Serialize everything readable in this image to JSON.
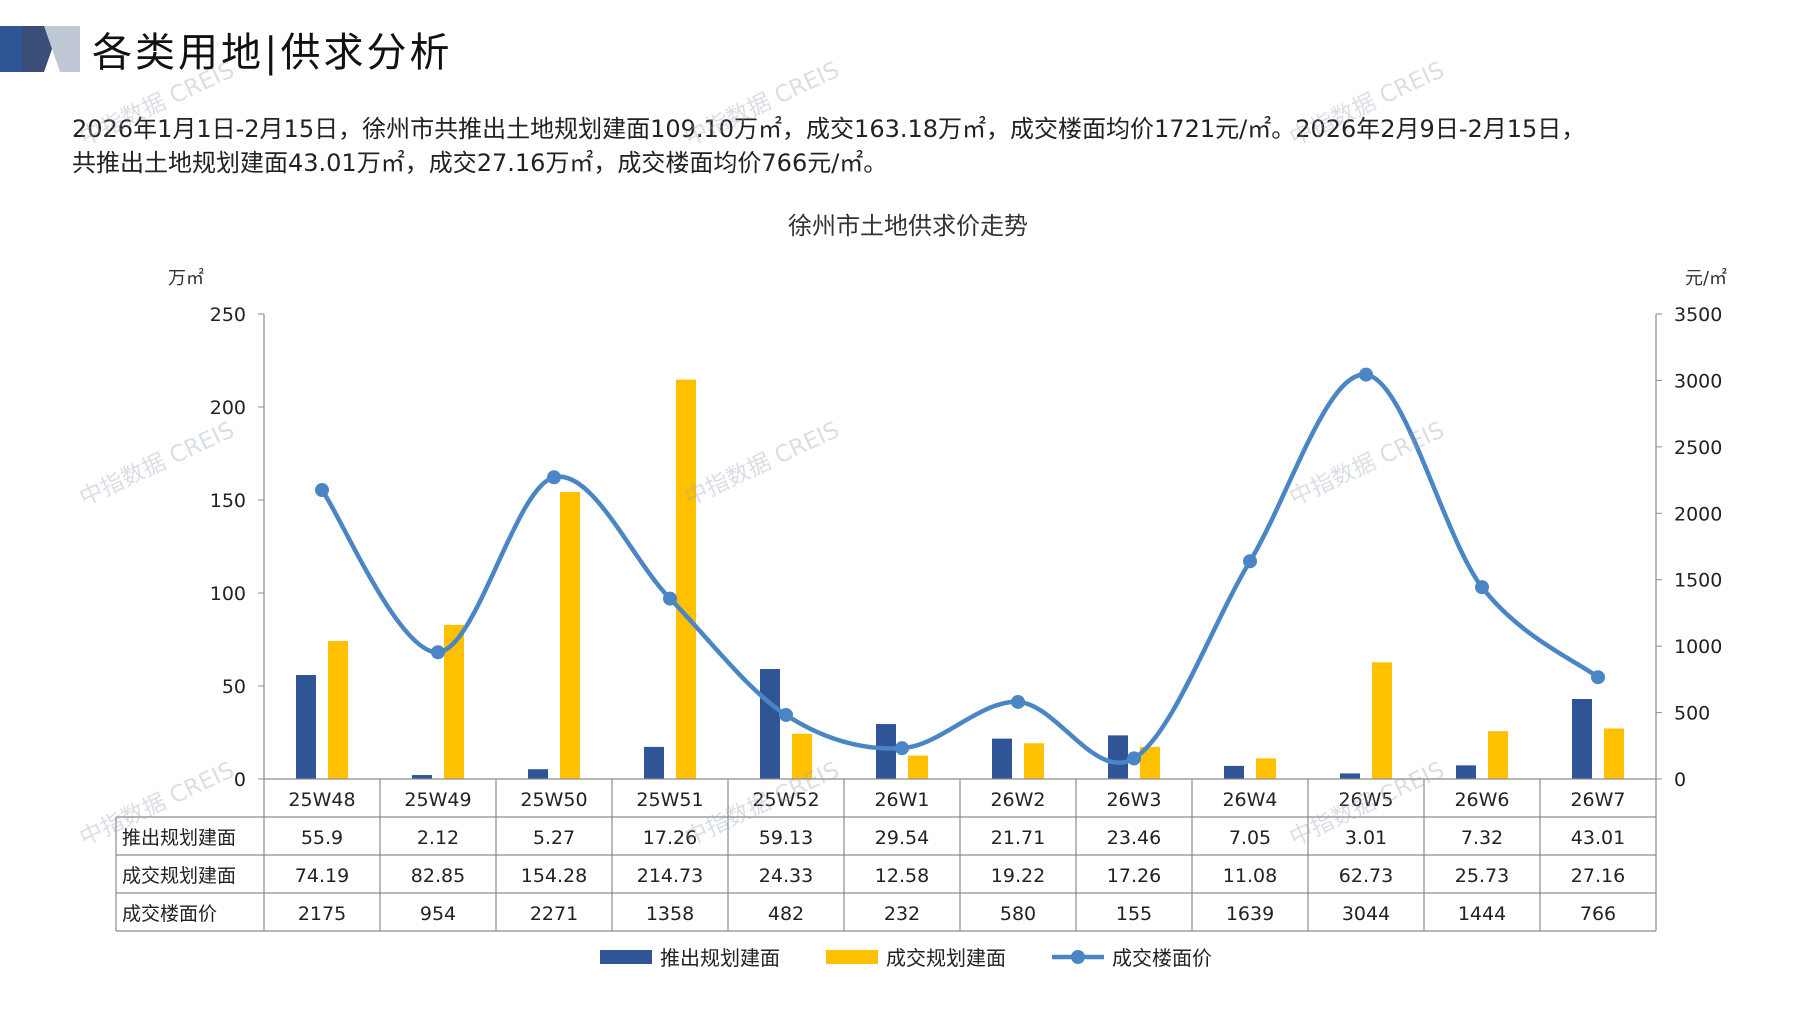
{
  "header": {
    "title": "各类用地|供求分析"
  },
  "summary": {
    "line1": "2026年1月1日-2月15日，徐州市共推出土地规划建面109.10万㎡，成交163.18万㎡，成交楼面均价1721元/㎡。2026年2月9日-2月15日，",
    "line2": "共推出土地规划建面43.01万㎡，成交27.16万㎡，成交楼面均价766元/㎡。"
  },
  "watermark": "中指数据 CREIS",
  "colors": {
    "supply": "#2F5597",
    "deal": "#FFC000",
    "price": "#4A86C5",
    "deco_dark": "#2F5597",
    "deco_light": "#BFC7D5"
  },
  "chart_data": {
    "type": "bar",
    "title": "徐州市土地供求价走势",
    "ylabel_left": "万㎡",
    "ylabel_right": "元/㎡",
    "ylim_left": [
      0,
      250
    ],
    "ylim_right": [
      0,
      3500
    ],
    "yticks_left": [
      "0",
      "50",
      "100",
      "150",
      "200",
      "250"
    ],
    "yticks_right": [
      "0",
      "500",
      "1000",
      "1500",
      "2000",
      "2500",
      "3000",
      "3500"
    ],
    "categories": [
      "25W48",
      "25W49",
      "25W50",
      "25W51",
      "25W52",
      "26W1",
      "26W2",
      "26W3",
      "26W4",
      "26W5",
      "26W6",
      "26W7"
    ],
    "series": [
      {
        "name": "推出规划建面",
        "type": "bar",
        "axis": "left",
        "values": [
          55.9,
          2.12,
          5.27,
          17.26,
          59.13,
          29.54,
          21.71,
          23.46,
          7.05,
          3.01,
          7.32,
          43.01
        ],
        "labels": [
          "55.9",
          "2.12",
          "5.27",
          "17.26",
          "59.13",
          "29.54",
          "21.71",
          "23.46",
          "7.05",
          "3.01",
          "7.32",
          "43.01"
        ]
      },
      {
        "name": "成交规划建面",
        "type": "bar",
        "axis": "left",
        "values": [
          74.19,
          82.85,
          154.28,
          214.73,
          24.33,
          12.58,
          19.22,
          17.26,
          11.08,
          62.73,
          25.73,
          27.16
        ],
        "labels": [
          "74.19",
          "82.85",
          "154.28",
          "214.73",
          "24.33",
          "12.58",
          "19.22",
          "17.26",
          "11.08",
          "62.73",
          "25.73",
          "27.16"
        ]
      },
      {
        "name": "成交楼面价",
        "type": "line",
        "axis": "right",
        "values": [
          2175,
          954,
          2271,
          1358,
          482,
          232,
          580,
          155,
          1639,
          3044,
          1444,
          766
        ],
        "labels": [
          "2175",
          "954",
          "2271",
          "1358",
          "482",
          "232",
          "580",
          "155",
          "1639",
          "3044",
          "1444",
          "766"
        ]
      }
    ],
    "legend_position": "bottom",
    "grid": false
  }
}
